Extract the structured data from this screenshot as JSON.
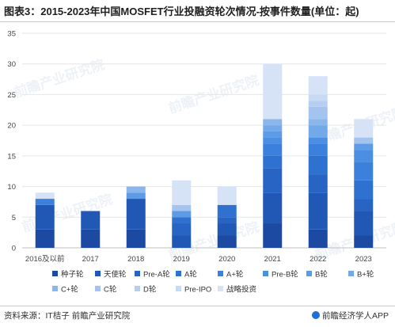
{
  "title": "图表3：2015-2023年中国MOSFET行业投融资轮次情况-按事件数量(单位：起)",
  "source": "资料来源：IT桔子 前瞻产业研究院",
  "brand": "前瞻经济学人APP",
  "watermark": "前瞻产业研究院",
  "chart_data": {
    "type": "bar",
    "stacked": true,
    "categories": [
      "2016及以前",
      "2017",
      "2018",
      "2019",
      "2020",
      "2021",
      "2022",
      "2023"
    ],
    "ylim": [
      0,
      35
    ],
    "yticks": [
      0,
      5,
      10,
      15,
      20,
      25,
      30,
      35
    ],
    "grid": true,
    "legend_position": "bottom",
    "series": [
      {
        "name": "种子轮",
        "color": "#1c4aa3",
        "values": [
          3,
          3,
          3,
          0,
          2,
          4,
          3,
          2
        ]
      },
      {
        "name": "天使轮",
        "color": "#2157b5",
        "values": [
          4,
          3,
          5,
          2,
          2,
          5,
          6,
          4
        ]
      },
      {
        "name": "Pre-A轮",
        "color": "#2864c4",
        "values": [
          0,
          0,
          0,
          2,
          1,
          4,
          3,
          2
        ]
      },
      {
        "name": "A轮",
        "color": "#2f71d1",
        "values": [
          0,
          0,
          0,
          1,
          2,
          2,
          3,
          3
        ]
      },
      {
        "name": "A+轮",
        "color": "#3b80dc",
        "values": [
          1,
          0,
          0,
          0,
          0,
          2,
          2,
          3
        ]
      },
      {
        "name": "Pre-B轮",
        "color": "#4c8ee2",
        "values": [
          0,
          0,
          0,
          0,
          0,
          1,
          1,
          2
        ]
      },
      {
        "name": "B轮",
        "color": "#5d9be6",
        "values": [
          0,
          0,
          1,
          1,
          0,
          1,
          0,
          1
        ]
      },
      {
        "name": "B+轮",
        "color": "#73a8e9",
        "values": [
          0,
          0,
          0,
          0,
          0,
          1,
          2,
          0
        ]
      },
      {
        "name": "C+轮",
        "color": "#8ab6ec",
        "values": [
          0,
          0,
          1,
          0,
          0,
          1,
          1,
          0
        ]
      },
      {
        "name": "C轮",
        "color": "#a2c4ef",
        "values": [
          0,
          0,
          0,
          1,
          0,
          0,
          2,
          1
        ]
      },
      {
        "name": "D轮",
        "color": "#b6cff1",
        "values": [
          0,
          0,
          0,
          0,
          0,
          0,
          1,
          0
        ]
      },
      {
        "name": "Pre-IPO",
        "color": "#c8d9f3",
        "values": [
          0,
          0,
          0,
          0,
          0,
          0,
          1,
          0
        ]
      },
      {
        "name": "战略投资",
        "color": "#d6e2f6",
        "values": [
          1,
          0,
          0,
          4,
          3,
          9,
          3,
          3
        ]
      }
    ]
  }
}
